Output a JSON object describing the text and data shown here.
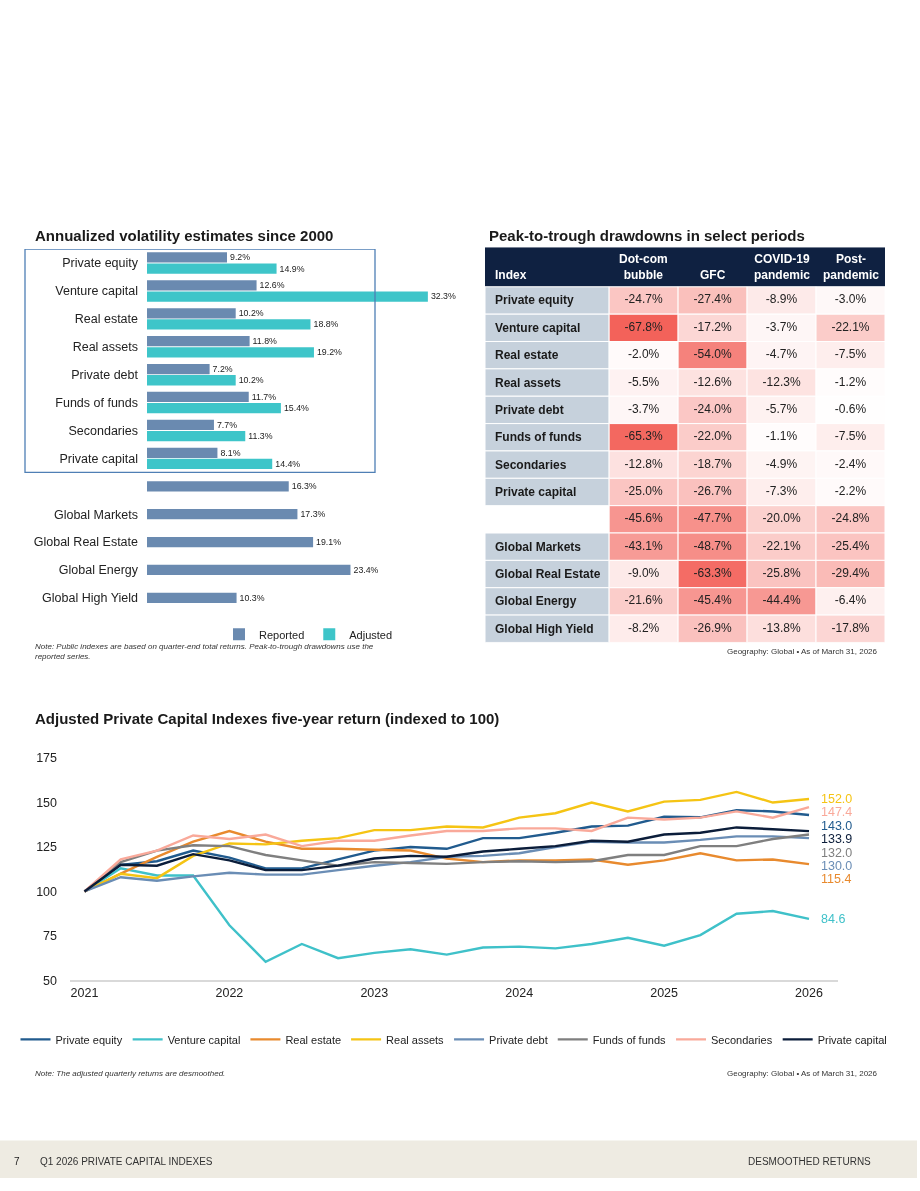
{
  "chart_data": [
    {
      "type": "bar",
      "orientation": "horizontal",
      "title": "Annualized volatility estimates since 2000",
      "categories": [
        "Private equity",
        "Venture capital",
        "Real estate",
        "Real assets",
        "Private debt",
        "Funds of funds",
        "Secondaries",
        "Private capital",
        null,
        "Global Markets",
        "Global Real Estate",
        "Global Energy",
        "Global High Yield"
      ],
      "series": [
        {
          "name": "Reported",
          "color": "#6a8ab0",
          "values": [
            9.2,
            12.6,
            10.2,
            11.8,
            7.2,
            11.7,
            7.7,
            8.1,
            16.3,
            17.3,
            19.1,
            23.4,
            10.3
          ],
          "value_labels": [
            "9.2%",
            "12.6%",
            "10.2%",
            "11.8%",
            "7.2%",
            "11.7%",
            "7.7%",
            "8.1%",
            "16.3%",
            "17.3%",
            "19.1%",
            "23.4%",
            "10.3%"
          ]
        },
        {
          "name": "Adjusted",
          "color": "#3ec5c9",
          "values": [
            14.9,
            32.3,
            18.8,
            19.2,
            10.2,
            15.4,
            11.3,
            14.4,
            null,
            null,
            null,
            null,
            null
          ],
          "value_labels": [
            "14.9%",
            "32.3%",
            "18.8%",
            "19.2%",
            "10.2%",
            "15.4%",
            "11.3%",
            "14.4%",
            null,
            null,
            null,
            null,
            null
          ]
        }
      ],
      "legend": "bottom",
      "annotations": [
        "Note: Public indexes are based on quarter-end total returns. Peak-to-trough drawdowns use the reported series."
      ]
    },
    {
      "type": "heatmap",
      "title": "Peak-to-trough drawdowns in select periods",
      "ylabel": "Index",
      "categories": [
        "Dot-com bubble",
        "GFC",
        "COVID-19 pandemic",
        "Post-pandemic"
      ],
      "y_categories": [
        "Private equity",
        "Venture capital",
        "Real estate",
        "Real assets",
        "Private debt",
        "Funds of funds",
        "Secondaries",
        "Private capital",
        null,
        "Global Markets",
        "Global Real Estate",
        "Global Energy",
        "Global High Yield"
      ],
      "cells": [
        [
          -24.7,
          -27.4,
          -8.9,
          -3.0
        ],
        [
          -67.8,
          -17.2,
          -3.7,
          -22.1
        ],
        [
          -2.0,
          -54.0,
          -4.7,
          -7.5
        ],
        [
          -5.5,
          -12.6,
          -12.3,
          -1.2
        ],
        [
          -3.7,
          -24.0,
          -5.7,
          -0.6
        ],
        [
          -65.3,
          -22.0,
          -1.1,
          -7.5
        ],
        [
          -12.8,
          -18.7,
          -4.9,
          -2.4
        ],
        [
          -25.0,
          -26.7,
          -7.3,
          -2.2
        ],
        [
          -45.6,
          -47.7,
          -20.0,
          -24.8
        ],
        [
          -43.1,
          -48.7,
          -22.1,
          -25.4
        ],
        [
          -9.0,
          -63.3,
          -25.8,
          -29.4
        ],
        [
          -21.6,
          -45.4,
          -44.4,
          -6.4
        ],
        [
          -8.2,
          -26.9,
          -13.8,
          -17.8
        ]
      ],
      "cell_labels": [
        [
          "-24.7%",
          "-27.4%",
          "-8.9%",
          "-3.0%"
        ],
        [
          "-67.8%",
          "-17.2%",
          "-3.7%",
          "-22.1%"
        ],
        [
          "-2.0%",
          "-54.0%",
          "-4.7%",
          "-7.5%"
        ],
        [
          "-5.5%",
          "-12.6%",
          "-12.3%",
          "-1.2%"
        ],
        [
          "-3.7%",
          "-24.0%",
          "-5.7%",
          "-0.6%"
        ],
        [
          "-65.3%",
          "-22.0%",
          "-1.1%",
          "-7.5%"
        ],
        [
          "-12.8%",
          "-18.7%",
          "-4.9%",
          "-2.4%"
        ],
        [
          "-25.0%",
          "-26.7%",
          "-7.3%",
          "-2.2%"
        ],
        [
          "-45.6%",
          "-47.7%",
          "-20.0%",
          "-24.8%"
        ],
        [
          "-43.1%",
          "-48.7%",
          "-22.1%",
          "-25.4%"
        ],
        [
          "-9.0%",
          "-63.3%",
          "-25.8%",
          "-29.4%"
        ],
        [
          "-21.6%",
          "-45.4%",
          "-44.4%",
          "-6.4%"
        ],
        [
          "-8.2%",
          "-26.9%",
          "-13.8%",
          "-17.8%"
        ]
      ],
      "annotations": [
        "Geography: Global • As of March 31, 2026"
      ]
    },
    {
      "type": "line",
      "title": "Adjusted Private Capital Indexes five-year return (indexed to 100)",
      "x": [
        2021,
        2021.25,
        2021.5,
        2021.75,
        2022,
        2022.25,
        2022.5,
        2022.75,
        2023,
        2023.25,
        2023.5,
        2023.75,
        2024,
        2024.25,
        2024.5,
        2024.75,
        2025,
        2025.25,
        2025.5,
        2025.75,
        2026
      ],
      "series": [
        {
          "name": "Private equity",
          "color": "#215b8e",
          "values": [
            100,
            115,
            117,
            123,
            119,
            113,
            113,
            118,
            123,
            125,
            124,
            130,
            130,
            133,
            136.5,
            137,
            142,
            141.7,
            145.7,
            145,
            143.0
          ],
          "value_labels": [
            null,
            null,
            null,
            null,
            null,
            null,
            null,
            null,
            null,
            null,
            null,
            null,
            null,
            null,
            null,
            null,
            null,
            null,
            null,
            null,
            "143.0"
          ]
        },
        {
          "name": "Venture capital",
          "color": "#3fc1c9",
          "values": [
            100,
            113,
            109,
            109,
            81,
            60.5,
            70.5,
            62.5,
            65.5,
            67.5,
            64.5,
            68.5,
            69,
            68,
            70.5,
            74,
            69.5,
            75.5,
            87.5,
            89,
            84.6
          ],
          "value_labels": [
            null,
            null,
            null,
            null,
            null,
            null,
            null,
            null,
            null,
            null,
            null,
            null,
            null,
            null,
            null,
            null,
            null,
            null,
            null,
            null,
            "84.6"
          ]
        },
        {
          "name": "Real estate",
          "color": "#e88a2e",
          "values": [
            100,
            110,
            119.5,
            128,
            134,
            128,
            124,
            124,
            123.5,
            123,
            118.5,
            116.5,
            117.5,
            117.5,
            118,
            115,
            117.5,
            121.5,
            117.5,
            118,
            115.4
          ],
          "value_labels": [
            null,
            null,
            null,
            null,
            null,
            null,
            null,
            null,
            null,
            null,
            null,
            null,
            null,
            null,
            null,
            null,
            null,
            null,
            null,
            null,
            "115.4"
          ]
        },
        {
          "name": "Real assets",
          "color": "#f5c414",
          "values": [
            100,
            110,
            107.5,
            120,
            127,
            126.5,
            128.5,
            130,
            134.5,
            134.5,
            136.5,
            136,
            141.5,
            144,
            150,
            145,
            150.5,
            151.5,
            156,
            150,
            152.0
          ],
          "value_labels": [
            null,
            null,
            null,
            null,
            null,
            null,
            null,
            null,
            null,
            null,
            null,
            null,
            null,
            null,
            null,
            null,
            null,
            null,
            null,
            null,
            "152.0"
          ]
        },
        {
          "name": "Private debt",
          "color": "#6a8db5",
          "values": [
            100,
            108,
            106,
            108.5,
            110.5,
            109.5,
            109.5,
            112,
            114.5,
            116.5,
            119.5,
            120,
            121.5,
            125,
            128,
            127.5,
            127.5,
            129,
            131,
            131,
            130.0
          ],
          "value_labels": [
            null,
            null,
            null,
            null,
            null,
            null,
            null,
            null,
            null,
            null,
            null,
            null,
            null,
            null,
            null,
            null,
            null,
            null,
            null,
            null,
            "130.0"
          ]
        },
        {
          "name": "Funds of funds",
          "color": "#7f7f7f",
          "values": [
            100,
            116.5,
            123,
            126,
            125.5,
            120.5,
            117.5,
            114.5,
            116.5,
            116,
            115.5,
            116.5,
            117,
            116.5,
            117,
            120.5,
            120.5,
            125.5,
            125.5,
            129.5,
            132.0
          ],
          "value_labels": [
            null,
            null,
            null,
            null,
            null,
            null,
            null,
            null,
            null,
            null,
            null,
            null,
            null,
            null,
            null,
            null,
            null,
            null,
            null,
            null,
            "132.0"
          ]
        },
        {
          "name": "Secondaries",
          "color": "#f9a99a",
          "values": [
            100,
            118,
            123,
            131.5,
            129.5,
            132,
            125.5,
            128.5,
            128.5,
            131.5,
            134,
            134,
            135.5,
            135.5,
            134,
            141.5,
            140.5,
            141.5,
            145,
            141.5,
            147.4
          ],
          "value_labels": [
            null,
            null,
            null,
            null,
            null,
            null,
            null,
            null,
            null,
            null,
            null,
            null,
            null,
            null,
            null,
            null,
            null,
            null,
            null,
            null,
            "147.4"
          ]
        },
        {
          "name": "Private capital",
          "color": "#0b1d3a",
          "values": [
            100,
            115,
            114.5,
            121,
            117.5,
            112,
            112,
            114.5,
            118.5,
            120,
            119.5,
            122.5,
            124,
            125.5,
            128.5,
            128,
            132,
            133,
            136,
            135,
            133.9
          ],
          "value_labels": [
            null,
            null,
            null,
            null,
            null,
            null,
            null,
            null,
            null,
            null,
            null,
            null,
            null,
            null,
            null,
            null,
            null,
            null,
            null,
            null,
            "133.9"
          ]
        }
      ],
      "xlim": [
        2020.9,
        2026.2
      ],
      "xticks": [
        2021,
        2022,
        2023,
        2024,
        2025,
        2026
      ],
      "ylim": [
        50,
        175
      ],
      "yticks": [
        50,
        75,
        100,
        125,
        150,
        175
      ],
      "legend": "bottom",
      "annotations": [
        "Note: The adjusted quarterly returns are desmoothed.",
        "Geography: Global • As of March 31, 2026",
        "7",
        "Q1 2026 PRIVATE CAPITAL INDEXES",
        "DESMOOTHED RETURNS"
      ]
    }
  ]
}
